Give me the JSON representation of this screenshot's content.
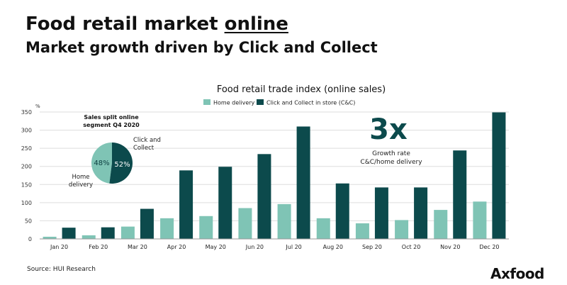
{
  "header": {
    "title_prefix": "Food retail market ",
    "title_emphasis": "online",
    "subtitle": "Market growth driven by Click and Collect"
  },
  "footer": {
    "source": "Source: HUI Research",
    "logo_text": "Axfood"
  },
  "colors": {
    "home_delivery": "#7fc4b5",
    "click_collect": "#0c4a4c"
  },
  "chart_data": [
    {
      "type": "bar",
      "title": "Food retail trade index (online sales)",
      "ylabel": "%",
      "xlabel": "",
      "ylim": [
        0,
        350
      ],
      "yticks": [
        0,
        50,
        100,
        150,
        200,
        250,
        300,
        350
      ],
      "grid": true,
      "legend": "top-center",
      "categories": [
        "Jan 20",
        "Feb 20",
        "Mar 20",
        "Apr 20",
        "May 20",
        "Jun 20",
        "Jul 20",
        "Aug 20",
        "Sep 20",
        "Oct 20",
        "Nov 20",
        "Dec 20"
      ],
      "series": [
        {
          "name": "Home delivery",
          "values": [
            6,
            10,
            34,
            57,
            63,
            85,
            96,
            57,
            43,
            52,
            80,
            103
          ]
        },
        {
          "name": "Click and Collect in store (C&C)",
          "values": [
            31,
            32,
            83,
            189,
            199,
            234,
            310,
            153,
            142,
            142,
            244,
            349
          ]
        }
      ],
      "annotation": {
        "value": "3x",
        "text_line1": "Growth rate",
        "text_line2": "C&C/home delivery"
      }
    },
    {
      "type": "pie",
      "title_line1": "Sales split online",
      "title_line2": "segment Q4 2020",
      "slices": [
        {
          "label_line1": "Home",
          "label_line2": "delivery",
          "value": 48,
          "value_label": "48%"
        },
        {
          "label_line1": "Click and",
          "label_line2": "Collect",
          "value": 52,
          "value_label": "52%"
        }
      ]
    }
  ]
}
